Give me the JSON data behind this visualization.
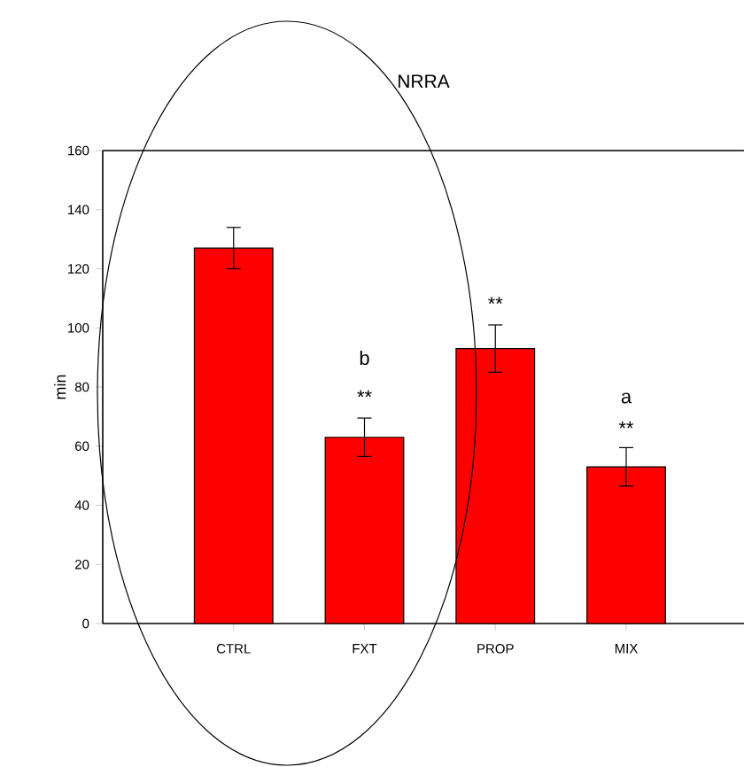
{
  "chart_data": {
    "type": "bar",
    "title": "NRRA",
    "ylabel": "min",
    "categories": [
      "CTRL",
      "FXT",
      "PROP",
      "MIX"
    ],
    "values": [
      127,
      63,
      93,
      53
    ],
    "errors": [
      7,
      6.5,
      8,
      6.5
    ],
    "color": "#ff0000",
    "ylim": [
      0,
      160
    ],
    "yticks": [
      0,
      20,
      40,
      60,
      80,
      100,
      120,
      140,
      160
    ],
    "annotations": [
      "b",
      "**",
      "**",
      "a",
      "**"
    ]
  }
}
